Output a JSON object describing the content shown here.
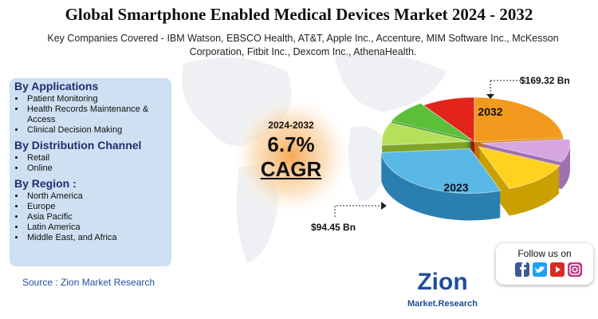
{
  "header": {
    "title": "Global Smartphone Enabled Medical Devices Market 2024 - 2032",
    "companies": "Key Companies Covered - IBM Watson, EBSCO Health, AT&T, Apple Inc., Accenture, MIM Software Inc., McKesson Corporation, Fitbit Inc., Dexcom Inc., AthenaHealth."
  },
  "panel": {
    "sections": [
      {
        "heading": "By Applications",
        "items": [
          "Patient Monitoring",
          "Health Records Maintenance & Access",
          "Clinical Decision Making"
        ]
      },
      {
        "heading": "By Distribution Channel",
        "items": [
          "Retail",
          "Online"
        ]
      },
      {
        "heading": "By Region :",
        "items": [
          "North America",
          "Europe",
          "Asia Pacific",
          "Latin America",
          "Middle East, and Africa"
        ]
      }
    ]
  },
  "cagr": {
    "period": "2024-2032",
    "rate": "6.7%",
    "label": "CAGR"
  },
  "market": {
    "end": {
      "year": "2032",
      "value": "$169.32 Bn"
    },
    "start": {
      "year": "2023",
      "value": "$94.45 Bn"
    }
  },
  "source": "Source : Zion Market Research",
  "social": {
    "heading": "Follow us on"
  },
  "logo": {
    "name": "Zion",
    "tagline": "Market.Research"
  }
}
